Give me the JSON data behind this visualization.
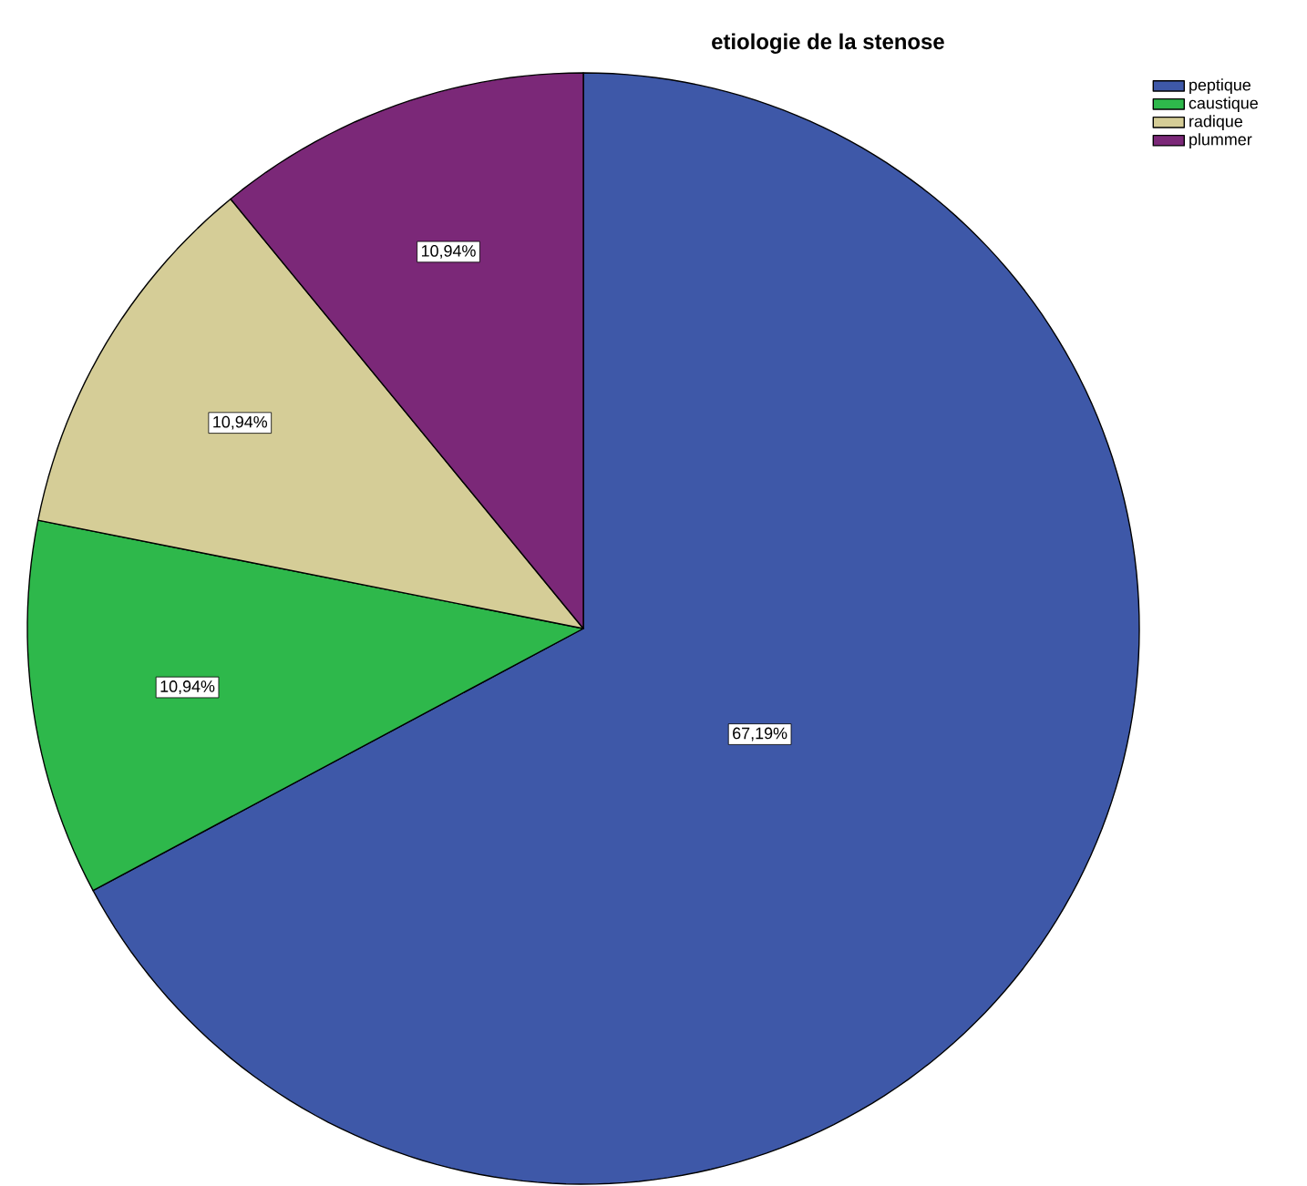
{
  "chart_data": {
    "type": "pie",
    "title": "etiologie de la stenose",
    "categories": [
      "peptique",
      "caustique",
      "radique",
      "plummer"
    ],
    "values": [
      67.19,
      10.94,
      10.94,
      10.94
    ],
    "colors": [
      "#3e58a8",
      "#2eb84b",
      "#d5cd97",
      "#7b2878"
    ],
    "value_labels": [
      "67,19%",
      "10,94%",
      "10,94%",
      "10,94%"
    ],
    "legend": "top right"
  }
}
